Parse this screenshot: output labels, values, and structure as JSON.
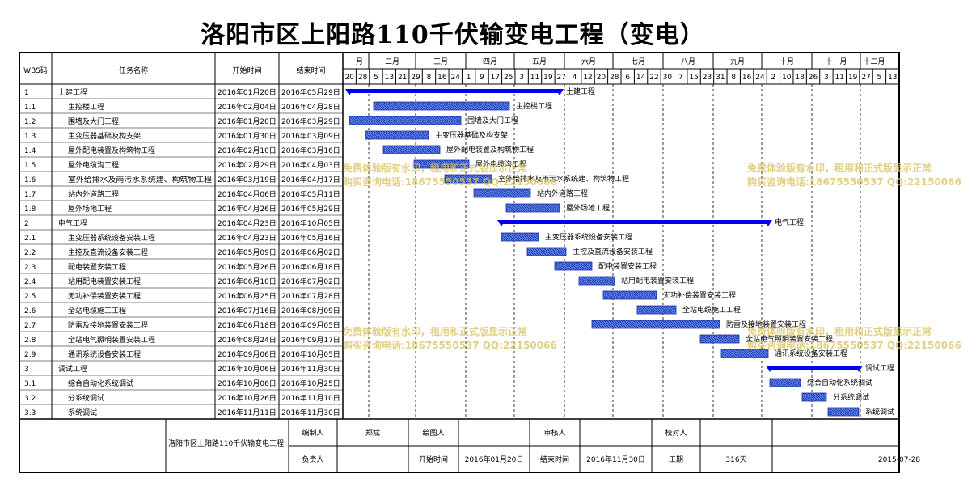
{
  "title": "洛阳市区上阳路110千伏输变电工程（变电）",
  "table_headers": {
    "wbs": "WBS码",
    "name": "任务名称",
    "start": "开始时间",
    "end": "结束时间"
  },
  "months": [
    "一月",
    "二月",
    "三月",
    "四月",
    "五月",
    "六月",
    "七月",
    "八月",
    "九月",
    "十月",
    "十一月",
    "十二月"
  ],
  "week_days": [
    "20",
    "28",
    "5",
    "13",
    "21",
    "29",
    "8",
    "16",
    "24",
    "1",
    "9",
    "17",
    "25",
    "3",
    "11",
    "19",
    "27",
    "4",
    "12",
    "20",
    "28",
    "6",
    "14",
    "22",
    "30",
    "7",
    "15",
    "23",
    "31",
    "8",
    "16",
    "24",
    "2",
    "10",
    "18",
    "26",
    "3",
    "11",
    "19",
    "27",
    "5",
    "13"
  ],
  "chart_data": {
    "type": "gantt",
    "axis_start": "2016-01-16",
    "tasks": [
      {
        "wbs": "1",
        "name": "土建工程",
        "start_text": "2016年01月20日",
        "end_text": "2016年05月29日",
        "start": "2016-01-20",
        "end": "2016-05-29",
        "summary": true,
        "label": "土建工程"
      },
      {
        "wbs": "1.1",
        "name": "主控楼工程",
        "start_text": "2016年02月04日",
        "end_text": "2016年04月28日",
        "start": "2016-02-04",
        "end": "2016-04-28",
        "label": "主控楼工程"
      },
      {
        "wbs": "1.2",
        "name": "围墙及大门工程",
        "start_text": "2016年01月20日",
        "end_text": "2016年03月29日",
        "start": "2016-01-20",
        "end": "2016-03-29",
        "label": "围墙及大门工程"
      },
      {
        "wbs": "1.3",
        "name": "主变压器基础及构支架",
        "start_text": "2016年01月30日",
        "end_text": "2016年03月09日",
        "start": "2016-01-30",
        "end": "2016-03-09",
        "label": "主变压器基础及构支架"
      },
      {
        "wbs": "1.4",
        "name": "屋外配电装置及构筑物工程",
        "start_text": "2016年02月10日",
        "end_text": "2016年03月16日",
        "start": "2016-02-10",
        "end": "2016-03-16",
        "label": "屋外配电装置及构筑物工程"
      },
      {
        "wbs": "1.5",
        "name": "屋外电缆沟工程",
        "start_text": "2016年02月29日",
        "end_text": "2016年04月03日",
        "start": "2016-02-29",
        "end": "2016-04-03",
        "label": "屋外电缆沟工程"
      },
      {
        "wbs": "1.6",
        "name": "室外给排水及雨污水系统建、构筑物工程",
        "start_text": "2016年03月19日",
        "end_text": "2016年04月17日",
        "start": "2016-03-19",
        "end": "2016-04-17",
        "label": "室外给排水及雨污水系统建、构筑物工程"
      },
      {
        "wbs": "1.7",
        "name": "站内外道路工程",
        "start_text": "2016年04月06日",
        "end_text": "2016年05月11日",
        "start": "2016-04-06",
        "end": "2016-05-11",
        "label": "站内外道路工程"
      },
      {
        "wbs": "1.8",
        "name": "屋外场地工程",
        "start_text": "2016年04月26日",
        "end_text": "2016年05月29日",
        "start": "2016-04-26",
        "end": "2016-05-29",
        "label": "屋外场地工程"
      },
      {
        "wbs": "2",
        "name": "电气工程",
        "start_text": "2016年04月23日",
        "end_text": "2016年10月05日",
        "start": "2016-04-23",
        "end": "2016-10-05",
        "summary": true,
        "label": "电气工程"
      },
      {
        "wbs": "2.1",
        "name": "主变压器系统设备安装工程",
        "start_text": "2016年04月23日",
        "end_text": "2016年05月16日",
        "start": "2016-04-23",
        "end": "2016-05-16",
        "label": "主变压器系统设备安装工程"
      },
      {
        "wbs": "2.2",
        "name": "主控及直流设备安装工程",
        "start_text": "2016年05月09日",
        "end_text": "2016年06月02日",
        "start": "2016-05-09",
        "end": "2016-06-02",
        "label": "主控及直流设备安装工程"
      },
      {
        "wbs": "2.3",
        "name": "配电装置安装工程",
        "start_text": "2016年05月26日",
        "end_text": "2016年06月18日",
        "start": "2016-05-26",
        "end": "2016-06-18",
        "label": "配电装置安装工程"
      },
      {
        "wbs": "2.4",
        "name": "站用配电装置安装工程",
        "start_text": "2016年06月10日",
        "end_text": "2016年07月02日",
        "start": "2016-06-10",
        "end": "2016-07-02",
        "label": "站用配电装置安装工程"
      },
      {
        "wbs": "2.5",
        "name": "无功补偿装置安装工程",
        "start_text": "2016年06月25日",
        "end_text": "2016年07月28日",
        "start": "2016-06-25",
        "end": "2016-07-28",
        "label": "无功补偿装置安装工程"
      },
      {
        "wbs": "2.6",
        "name": "全站电缆施工工程",
        "start_text": "2016年07月16日",
        "end_text": "2016年08月09日",
        "start": "2016-07-16",
        "end": "2016-08-09",
        "label": "全站电缆施工工程"
      },
      {
        "wbs": "2.7",
        "name": "防雷及接地装置安装工程",
        "start_text": "2016年06月18日",
        "end_text": "2016年09月05日",
        "start": "2016-06-18",
        "end": "2016-09-05",
        "label": "防雷及接地装置安装工程"
      },
      {
        "wbs": "2.8",
        "name": "全站电气照明装置安装工程",
        "start_text": "2016年08月24日",
        "end_text": "2016年09月17日",
        "start": "2016-08-24",
        "end": "2016-09-17",
        "label": "全站电气照明装置安装工程"
      },
      {
        "wbs": "2.9",
        "name": "通讯系统设备安装工程",
        "start_text": "2016年09月06日",
        "end_text": "2016年10月05日",
        "start": "2016-09-06",
        "end": "2016-10-05",
        "label": "通讯系统设备安装工程"
      },
      {
        "wbs": "3",
        "name": "调试工程",
        "start_text": "2016年10月06日",
        "end_text": "2016年11月30日",
        "start": "2016-10-06",
        "end": "2016-11-30",
        "summary": true,
        "label": "调试工程"
      },
      {
        "wbs": "3.1",
        "name": "综合自动化系统调试",
        "start_text": "2016年10月06日",
        "end_text": "2016年10月25日",
        "start": "2016-10-06",
        "end": "2016-10-25",
        "label": "综合自动化系统调试"
      },
      {
        "wbs": "3.2",
        "name": "分系统调试",
        "start_text": "2016年10月26日",
        "end_text": "2016年11月10日",
        "start": "2016-10-26",
        "end": "2016-11-10",
        "label": "分系统调试"
      },
      {
        "wbs": "3.3",
        "name": "系统调试",
        "start_text": "2016年11月11日",
        "end_text": "2016年11月30日",
        "start": "2016-11-11",
        "end": "2016-11-30",
        "label": "系统调试"
      }
    ]
  },
  "footer": {
    "project": "洛阳市区上阳路110千伏输变电工程",
    "editor_label": "编制人",
    "editor": "郑斌",
    "drawer_label": "绘图人",
    "drawer": "",
    "reviewer_label": "审核人",
    "reviewer": "",
    "checker_label": "校对人",
    "checker": "",
    "owner_label": "负责人",
    "owner": "",
    "start_label": "开始时间",
    "start": "2016年01月20日",
    "end_label": "结束时间",
    "end": "2016年11月30日",
    "duration_label": "工期",
    "duration": "316天",
    "date": "2015-07-28"
  },
  "watermark": {
    "line1": "免费体验版有水印，租用和正式版显示正常",
    "line2": "购买咨询电话:18675550537 QQ:22150066"
  }
}
